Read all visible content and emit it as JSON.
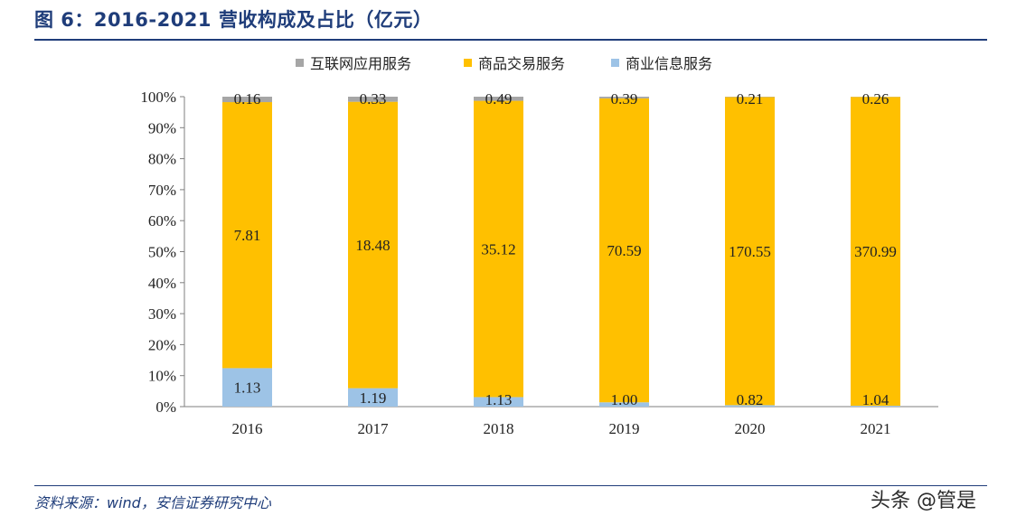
{
  "header": {
    "title": "图 6：2016-2021 营收构成及占比（亿元）"
  },
  "footer": {
    "source": "资料来源：wind，安信证券研究中心",
    "watermark": "头条 @管是"
  },
  "colors": {
    "internet_app": "#a6a6a6",
    "goods_trade": "#ffc000",
    "business_info": "#9dc3e6"
  },
  "chart_data": {
    "type": "bar",
    "stacked": "percent",
    "categories": [
      "2016",
      "2017",
      "2018",
      "2019",
      "2020",
      "2021"
    ],
    "series": [
      {
        "name": "商业信息服务",
        "values": [
          1.13,
          1.19,
          1.13,
          1.0,
          0.82,
          1.04
        ],
        "labels": [
          "1.13",
          "1.19",
          "1.13",
          "1.00",
          "0.82",
          "1.04"
        ],
        "color": "#9dc3e6"
      },
      {
        "name": "商品交易服务",
        "values": [
          7.81,
          18.48,
          35.12,
          70.59,
          170.55,
          370.99
        ],
        "labels": [
          "7.81",
          "18.48",
          "35.12",
          "70.59",
          "170.55",
          "370.99"
        ],
        "color": "#ffc000"
      },
      {
        "name": "互联网应用服务",
        "values": [
          0.16,
          0.33,
          0.49,
          0.39,
          0.21,
          0.26
        ],
        "labels": [
          "0.16",
          "0.33",
          "0.49",
          "0.39",
          "0.21",
          "0.26"
        ],
        "color": "#a6a6a6"
      }
    ],
    "legend_order": [
      "互联网应用服务",
      "商品交易服务",
      "商业信息服务"
    ],
    "yticks": [
      "0%",
      "10%",
      "20%",
      "30%",
      "40%",
      "50%",
      "60%",
      "70%",
      "80%",
      "90%",
      "100%"
    ],
    "ylim": [
      0,
      100
    ],
    "legend_position": "top-center",
    "grid": false
  }
}
